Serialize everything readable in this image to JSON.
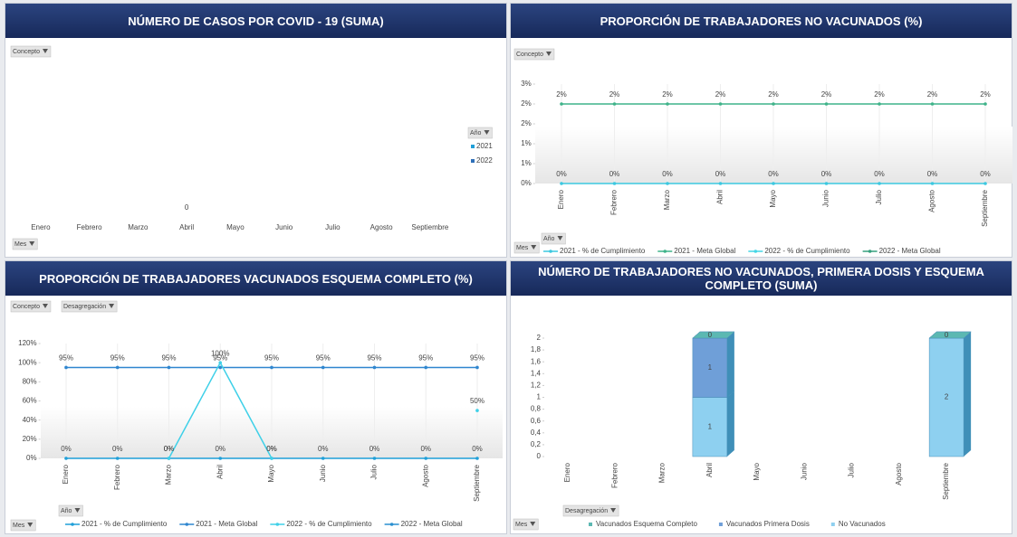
{
  "chart_data": [
    {
      "type": "bar",
      "title": "NÚMERO DE CASOS POR COVID - 19 (SUMA)",
      "filters": [
        "Concepto",
        "Año",
        "Mes"
      ],
      "categories": [
        "Enero",
        "Febrero",
        "Marzo",
        "Abril",
        "Mayo",
        "Junio",
        "Julio",
        "Agosto",
        "Septiembre"
      ],
      "series": [
        {
          "name": "2021",
          "color": "#1f9fd8",
          "values": [
            null,
            null,
            null,
            0,
            null,
            null,
            null,
            null,
            null
          ]
        },
        {
          "name": "2022",
          "color": "#2e6fb8",
          "values": [
            null,
            null,
            null,
            null,
            null,
            null,
            null,
            null,
            null
          ]
        }
      ],
      "legend": "right"
    },
    {
      "type": "line",
      "title": "PROPORCIÓN DE TRABAJADORES NO VACUNADOS (%)",
      "filters": [
        "Concepto",
        "Año",
        "Mes"
      ],
      "categories": [
        "Enero",
        "Febrero",
        "Marzo",
        "Abril",
        "Mayo",
        "Junio",
        "Julio",
        "Agosto",
        "Septiembre"
      ],
      "series": [
        {
          "name": "2021 - % de Cumplimiento",
          "color": "#3cc8e0",
          "values": [
            0,
            0,
            0,
            0,
            0,
            0,
            0,
            0,
            0
          ],
          "value_labels": [
            "0%",
            "0%",
            "0%",
            "0%",
            "0%",
            "0%",
            "0%",
            "0%",
            "0%"
          ]
        },
        {
          "name": "2021 - Meta Global",
          "color": "#3fb38a",
          "values": [
            2,
            2,
            2,
            2,
            2,
            2,
            2,
            2,
            2
          ],
          "value_labels": [
            "2%",
            "2%",
            "2%",
            "2%",
            "2%",
            "2%",
            "2%",
            "2%",
            "2%"
          ]
        },
        {
          "name": "2022 - % de Cumplimiento",
          "color": "#45d6e6",
          "values": [
            null,
            null,
            null,
            null,
            null,
            null,
            null,
            null,
            null
          ]
        },
        {
          "name": "2022 - Meta Global",
          "color": "#36a07e",
          "values": [
            null,
            null,
            null,
            null,
            null,
            null,
            null,
            null,
            null
          ]
        }
      ],
      "ylim": [
        0,
        2.5
      ],
      "yticks": [
        {
          "value": 0,
          "label": "0%"
        },
        {
          "value": 0.5,
          "label": "1%"
        },
        {
          "value": 1,
          "label": "1%"
        },
        {
          "value": 1.5,
          "label": "2%"
        },
        {
          "value": 2,
          "label": "2%"
        },
        {
          "value": 2.5,
          "label": "3%"
        }
      ],
      "legend": "bottom"
    },
    {
      "type": "line",
      "title": "PROPORCIÓN DE TRABAJADORES VACUNADOS ESQUEMA COMPLETO (%)",
      "filters": [
        "Concepto",
        "Desagregación",
        "Año",
        "Mes"
      ],
      "categories": [
        "Enero",
        "Febrero",
        "Marzo",
        "Abril",
        "Mayo",
        "Junio",
        "Julio",
        "Agosto",
        "Septiembre"
      ],
      "series": [
        {
          "name": "2021 - % de Cumplimiento",
          "color": "#1f9fd8",
          "values": [
            0,
            0,
            0,
            0,
            0,
            0,
            0,
            0,
            0
          ],
          "value_labels": [
            "0%",
            "0%",
            "0%",
            "0%",
            "0%",
            "0%",
            "0%",
            "0%",
            "0%"
          ]
        },
        {
          "name": "2021 - Meta Global",
          "color": "#2f86cf",
          "values": [
            95,
            95,
            95,
            95,
            95,
            95,
            95,
            95,
            95
          ],
          "value_labels": [
            "95%",
            "95%",
            "95%",
            "95%",
            "95%",
            "95%",
            "95%",
            "95%",
            "95%"
          ]
        },
        {
          "name": "2022 - % de Cumplimiento",
          "color": "#3fd0e8",
          "values": [
            null,
            null,
            0,
            100,
            0,
            null,
            null,
            null,
            50
          ],
          "value_labels": [
            null,
            null,
            "0%",
            "100%",
            "0%",
            null,
            null,
            null,
            "50%"
          ]
        },
        {
          "name": "2022 - Meta Global",
          "color": "#2a8fd0",
          "values": [
            null,
            null,
            null,
            null,
            null,
            null,
            null,
            null,
            null
          ]
        }
      ],
      "ylim": [
        0,
        120
      ],
      "yticks": [
        {
          "value": 0,
          "label": "0%"
        },
        {
          "value": 20,
          "label": "20%"
        },
        {
          "value": 40,
          "label": "40%"
        },
        {
          "value": 60,
          "label": "60%"
        },
        {
          "value": 80,
          "label": "80%"
        },
        {
          "value": 100,
          "label": "100%"
        },
        {
          "value": 120,
          "label": "120%"
        }
      ],
      "legend": "bottom"
    },
    {
      "type": "stacked_bar",
      "title": "NÚMERO DE TRABAJADORES NO VACUNADOS, PRIMERA DOSIS Y ESQUEMA COMPLETO (SUMA)",
      "filters": [
        "Desagregación",
        "Mes"
      ],
      "categories": [
        "Enero",
        "Febrero",
        "Marzo",
        "Abril",
        "Mayo",
        "Junio",
        "Julio",
        "Agosto",
        "Septiembre"
      ],
      "series": [
        {
          "name": "Vacunados Esquema Completo",
          "color": "#5cb8b2",
          "values": [
            null,
            null,
            null,
            0,
            null,
            null,
            null,
            null,
            0
          ]
        },
        {
          "name": "Vacunados Primera Dosis",
          "color": "#6f9fd8",
          "values": [
            null,
            null,
            null,
            1,
            null,
            null,
            null,
            null,
            null
          ]
        },
        {
          "name": "No Vacunados",
          "color": "#8ed0f0",
          "values": [
            null,
            null,
            null,
            1,
            null,
            null,
            null,
            null,
            2
          ]
        }
      ],
      "ylim": [
        0,
        2
      ],
      "yticks": [
        0,
        {
          "value": 0.2,
          "label": "0,2"
        },
        {
          "value": 0.4,
          "label": "0,4"
        },
        {
          "value": 0.6,
          "label": "0,6"
        },
        {
          "value": 0.8,
          "label": "0,8"
        },
        1,
        {
          "value": 1.2,
          "label": "1,2"
        },
        {
          "value": 1.4,
          "label": "1,4"
        },
        {
          "value": 1.6,
          "label": "1,6"
        },
        {
          "value": 1.8,
          "label": "1,8"
        },
        2
      ],
      "legend": "bottom"
    }
  ]
}
